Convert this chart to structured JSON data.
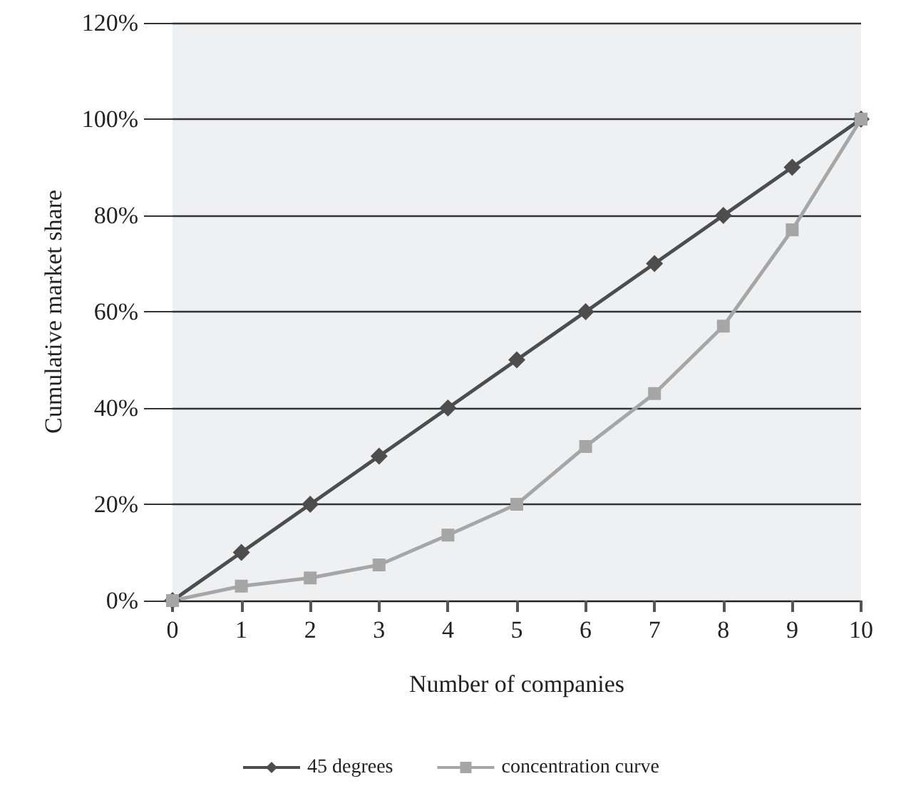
{
  "chart_data": {
    "type": "line",
    "xlabel": "Number of companies",
    "ylabel": "Cumulative market share",
    "x": [
      0,
      1,
      2,
      3,
      4,
      5,
      6,
      7,
      8,
      9,
      10
    ],
    "series": [
      {
        "name": "45 degrees",
        "color": "#4d4d4d",
        "marker": "diamond",
        "values": [
          0,
          10,
          20,
          30,
          40,
          50,
          60,
          70,
          80,
          90,
          100
        ]
      },
      {
        "name": "concentration curve",
        "color": "#a6a6a6",
        "marker": "square",
        "values": [
          0,
          3,
          4.7,
          7.4,
          13.6,
          20,
          32,
          43,
          57,
          77,
          100
        ]
      }
    ],
    "xlim": [
      0,
      10
    ],
    "xticks": [
      0,
      1,
      2,
      3,
      4,
      5,
      6,
      7,
      8,
      9,
      10
    ],
    "ylim": [
      0,
      120
    ],
    "yticks": [
      {
        "value": 0,
        "label": "0%"
      },
      {
        "value": 20,
        "label": "20%"
      },
      {
        "value": 40,
        "label": "40%"
      },
      {
        "value": 60,
        "label": "60%"
      },
      {
        "value": 80,
        "label": "80%"
      },
      {
        "value": 100,
        "label": "100%"
      },
      {
        "value": 120,
        "label": "120%"
      }
    ],
    "grid": "y",
    "legend": "bottom"
  }
}
